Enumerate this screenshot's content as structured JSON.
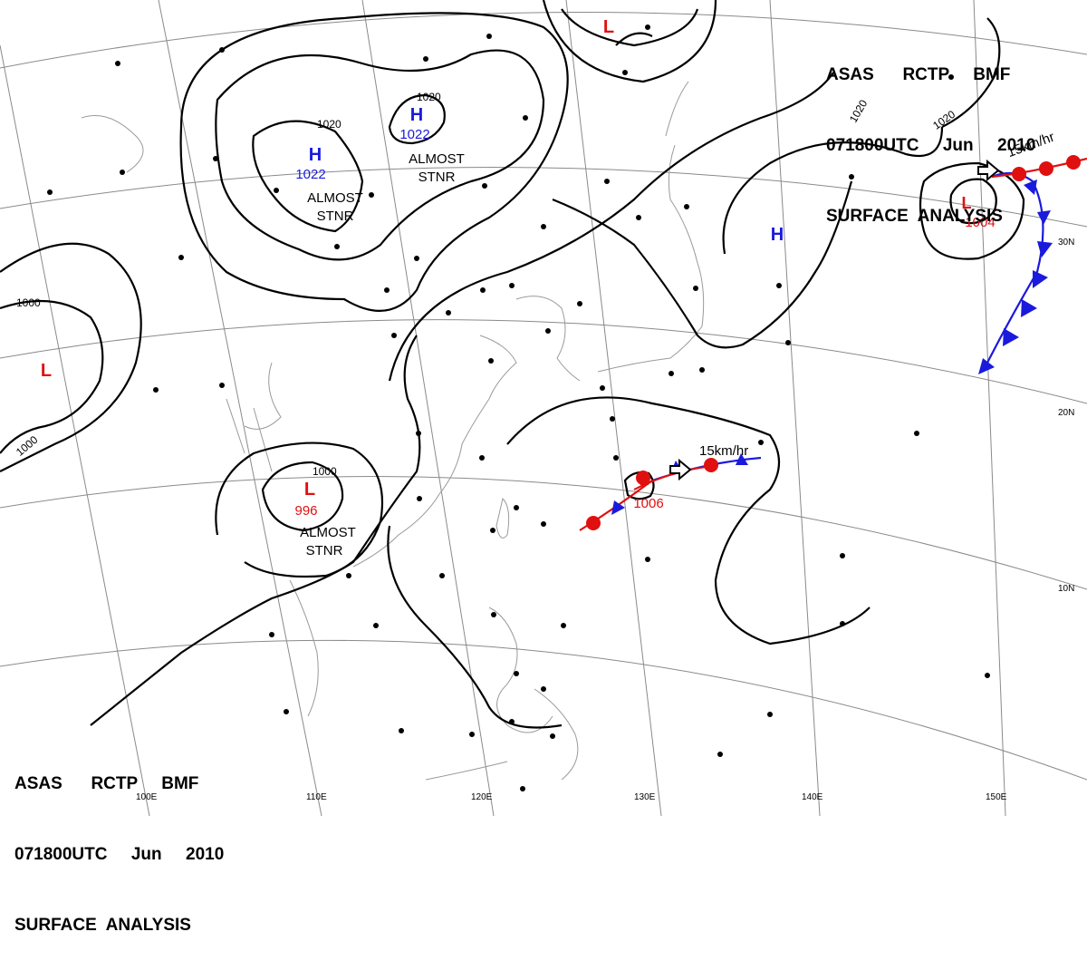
{
  "header": {
    "line1": "ASAS      RCTP     BMF",
    "line2": "071800UTC     Jun     2010",
    "line3": "SURFACE  ANALYSIS"
  },
  "footer": {
    "line1": "ASAS      RCTP     BMF",
    "line2": "071800UTC     Jun     2010",
    "line3": "SURFACE  ANALYSIS"
  },
  "pressure_centers": [
    {
      "type": "H",
      "value": "1022",
      "note": "ALMOST",
      "note2": "STNR"
    },
    {
      "type": "H",
      "value": "1022",
      "note": "ALMOST",
      "note2": "STNR"
    },
    {
      "type": "H",
      "value": "",
      "note": "",
      "note2": ""
    },
    {
      "type": "L",
      "value": "996",
      "note": "ALMOST",
      "note2": "STNR"
    },
    {
      "type": "L",
      "value": "1006",
      "note": "",
      "note2": ""
    },
    {
      "type": "L",
      "value": "1004",
      "note": "",
      "note2": ""
    },
    {
      "type": "L",
      "value": "",
      "note": "",
      "note2": ""
    },
    {
      "type": "L",
      "value": "",
      "note": "",
      "note2": ""
    }
  ],
  "isobar_labels": [
    "1020",
    "1020",
    "1020",
    "1020",
    "1000",
    "1000",
    "1000"
  ],
  "motion_labels": [
    "15km/hr",
    "15km/hr"
  ],
  "longitude_labels": [
    "100E",
    "110E",
    "120E",
    "130E",
    "140E",
    "150E"
  ],
  "latitude_labels": [
    "30N",
    "20N",
    "10N"
  ],
  "colors": {
    "high": "#1a1adc",
    "low": "#e01010",
    "cold_front": "#1a1adc",
    "warm_front": "#e01010",
    "isobar": "#000000",
    "grid": "#808080",
    "coast": "#909090"
  }
}
